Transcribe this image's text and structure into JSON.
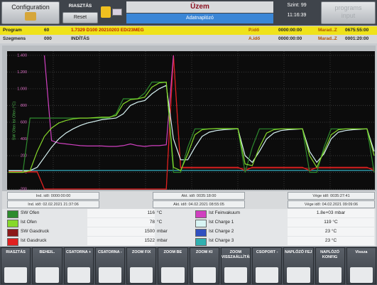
{
  "header": {
    "config_button": "Configuration",
    "alarm": "RIASZTÁS",
    "reset": "Reset",
    "title": "Üzem",
    "subtitle": "Adatnaplózó",
    "level": "Szint: 99",
    "time": "11:16:39",
    "program_input": "programs input"
  },
  "program_rows": [
    [
      "Program",
      "60",
      "1.7329 D100 20210203 ED/23MEG",
      "P.idő",
      "0000:00:00",
      "Marad..Z",
      "0675:55:00"
    ],
    [
      "Szegmens",
      "000",
      "INDÍTÁS",
      "A.idő",
      "0000:00:00",
      "Marad..Z",
      "0001:20:00"
    ]
  ],
  "chart_data": {
    "type": "line",
    "ylabel": "SW Ofen  Ist Ofen  (°C)",
    "ylim": [
      -200,
      1450
    ],
    "yticks": [
      {
        "value": 1400,
        "label": "1.400"
      },
      {
        "value": 1200,
        "label": "1.200"
      },
      {
        "value": 1000,
        "label": "1.000"
      },
      800,
      600,
      400,
      200,
      0,
      -200
    ],
    "grid": true,
    "series": [
      {
        "name": "SW Ofen",
        "color": "#2e8b2e",
        "values": [
          0,
          0,
          0,
          650,
          650,
          650,
          650,
          650,
          650,
          650,
          650,
          650,
          650,
          650,
          650,
          700,
          880,
          880,
          880,
          950,
          1080,
          1080,
          1080,
          0,
          0,
          300,
          520,
          520,
          520,
          520,
          520,
          520,
          520,
          0,
          300,
          520,
          520,
          520,
          520,
          520,
          520,
          520,
          0,
          0,
          300,
          520,
          520,
          520,
          520,
          520,
          520,
          0
        ]
      },
      {
        "name": "Ist Ofen",
        "color": "#86d82a",
        "values": [
          0,
          0,
          0,
          20,
          250,
          430,
          530,
          590,
          620,
          640,
          650,
          650,
          655,
          660,
          660,
          680,
          820,
          870,
          880,
          900,
          1020,
          1070,
          1080,
          60,
          20,
          220,
          450,
          510,
          520,
          525,
          525,
          525,
          525,
          100,
          80,
          300,
          470,
          510,
          520,
          520,
          520,
          520,
          200,
          60,
          250,
          450,
          510,
          520,
          520,
          520,
          520,
          200
        ]
      },
      {
        "name": "SW Gasdruck",
        "color": "#8b1a1a",
        "values": [
          0,
          0,
          0,
          0,
          0,
          -200,
          -200,
          -200,
          -200,
          -200,
          -200,
          -200,
          -200,
          -200,
          -200,
          -200,
          -200,
          -200,
          -200,
          -200,
          -200,
          -200,
          -200,
          1400,
          50,
          50,
          50,
          50,
          50,
          50,
          50,
          50,
          50,
          50,
          50,
          50,
          50,
          50,
          50,
          50,
          50,
          50,
          50,
          50,
          50,
          50,
          50,
          50,
          50,
          50,
          50,
          50
        ]
      },
      {
        "name": "Ist Gasdruck",
        "color": "#e02020",
        "values": [
          10,
          10,
          10,
          10,
          10,
          -200,
          -200,
          -200,
          -200,
          -200,
          -200,
          -200,
          -200,
          -200,
          -200,
          -200,
          -200,
          -200,
          -200,
          -200,
          -200,
          -200,
          -200,
          1400,
          60,
          60,
          60,
          60,
          60,
          60,
          60,
          60,
          60,
          20,
          60,
          60,
          60,
          60,
          60,
          60,
          60,
          60,
          20,
          60,
          60,
          60,
          60,
          60,
          60,
          60,
          60,
          20
        ]
      },
      {
        "name": "Ist Feinvakuum",
        "color": "#d040c0",
        "values": [
          null,
          null,
          null,
          null,
          null,
          1400,
          380,
          350,
          340,
          330,
          320,
          315,
          315,
          315,
          310,
          310,
          320,
          340,
          320,
          310,
          320,
          320,
          330,
          1400,
          null,
          null,
          null,
          null,
          null,
          null,
          null,
          null,
          null,
          null,
          null,
          null,
          null,
          null,
          null,
          null,
          null,
          null,
          null,
          null,
          null,
          null,
          null,
          null,
          null,
          null,
          null,
          null
        ]
      },
      {
        "name": "Ist Charge 1",
        "color": "#d8f4f4",
        "values": [
          20,
          20,
          20,
          20,
          60,
          180,
          300,
          400,
          470,
          520,
          560,
          590,
          610,
          630,
          640,
          650,
          700,
          800,
          840,
          860,
          940,
          1000,
          1040,
          400,
          150,
          150,
          300,
          430,
          480,
          500,
          510,
          515,
          520,
          200,
          120,
          250,
          400,
          470,
          500,
          510,
          515,
          520,
          250,
          120,
          220,
          400,
          480,
          500,
          510,
          515,
          520,
          250
        ]
      },
      {
        "name": "Ist Charge 2",
        "color": "#3050c0",
        "values": [
          23,
          23,
          23,
          23,
          23,
          23,
          23,
          23,
          23,
          23,
          23,
          23,
          23,
          23,
          23,
          23,
          23,
          23,
          23,
          23,
          23,
          23,
          23,
          23,
          23,
          23,
          23,
          23,
          23,
          23,
          23,
          23,
          23,
          23,
          23,
          23,
          23,
          23,
          23,
          23,
          23,
          23,
          23,
          23,
          23,
          23,
          23,
          23,
          23,
          23,
          23,
          23
        ]
      },
      {
        "name": "Ist Charge 3",
        "color": "#30b0b0",
        "values": [
          23,
          23,
          23,
          23,
          23,
          23,
          23,
          23,
          23,
          23,
          23,
          23,
          23,
          23,
          23,
          23,
          23,
          23,
          23,
          23,
          23,
          23,
          23,
          23,
          23,
          23,
          23,
          23,
          23,
          23,
          23,
          23,
          23,
          23,
          23,
          23,
          23,
          23,
          23,
          23,
          23,
          23,
          23,
          23,
          23,
          23,
          23,
          23,
          23,
          23,
          23,
          23
        ]
      }
    ]
  },
  "time_info": [
    [
      "Ind. idő: 0000:00:00",
      "Akt. idő: 0035:18:00",
      "Vége idő: 0035:27:41"
    ],
    [
      "Ind. idő: 02.02.2021 21:37:06",
      "Akt. idő: 04.02.2021 08:55:05",
      "Vége idő: 04.02.2021 09:09:06"
    ]
  ],
  "readouts": [
    {
      "value": "116",
      "unit": "°C"
    },
    {
      "value": "78",
      "unit": "°C"
    },
    {
      "value": "1500",
      "unit": "mbar"
    },
    {
      "value": "1522",
      "unit": "mbar"
    },
    {
      "value": "1.8e+03 mbar"
    },
    {
      "value": "119 °C"
    },
    {
      "value": "23 °C"
    },
    {
      "value": "23 °C"
    }
  ],
  "toolbar": [
    "RIASZTÁS",
    "BEHEIL.",
    "CSATORNA +",
    "CSATORNA -",
    "ZOOM FIX",
    "ZOOM BE",
    "ZOOM KI",
    "ZOOM VISSZAÁLLÍTÁS",
    "CSOPORT -",
    "NAPLÓZÓ FEJ",
    "NAPLÓZÓ KONFIG",
    "Vissza"
  ]
}
